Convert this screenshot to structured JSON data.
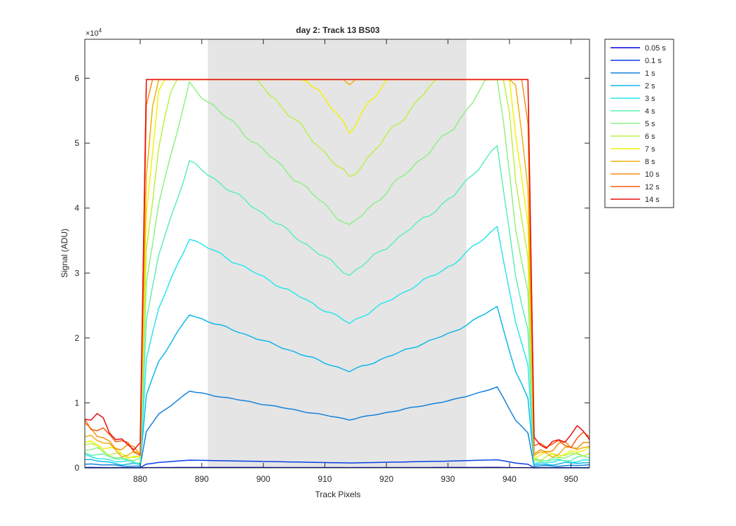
{
  "chart_data": {
    "type": "line",
    "title": "day 2: Track 13  BS03",
    "xlabel": "Track Pixels",
    "ylabel": "Signal (ADU)",
    "y_exponent_label": "×10",
    "y_exponent_power": "4",
    "xlim": [
      871,
      953
    ],
    "ylim": [
      0,
      66000
    ],
    "xticks": [
      880,
      890,
      900,
      910,
      920,
      930,
      940,
      950
    ],
    "yticks": [
      0,
      10000,
      20000,
      30000,
      40000,
      50000,
      60000
    ],
    "ytick_labels": [
      "0",
      "1",
      "2",
      "3",
      "4",
      "5",
      "6"
    ],
    "shaded_region": {
      "x_start": 891,
      "x_end": 933,
      "color": "#e5e5e5"
    },
    "grid": false,
    "legend_position": "outside-right",
    "saturation_level": 59800,
    "series": [
      {
        "name": "0.05 s",
        "exposure": 0.05,
        "color": "#0000e0",
        "levels": [
          35,
          41,
          49,
          59,
          74
        ]
      },
      {
        "name": "0.1 s",
        "exposure": 0.1,
        "color": "#0a3ee8",
        "levels": [
          700,
          820,
          980,
          1180,
          1480
        ]
      },
      {
        "name": "1 s",
        "exposure": 1,
        "color": "#1582dc",
        "levels": [
          7000,
          8200,
          9800,
          11800,
          14800
        ]
      },
      {
        "name": "2 s",
        "exposure": 2,
        "color": "#0fb8e8",
        "levels": [
          14000,
          16400,
          19600,
          23600,
          29600
        ]
      },
      {
        "name": "3 s",
        "exposure": 3,
        "color": "#2ae6ea",
        "levels": [
          21000,
          24600,
          29400,
          35400,
          44400
        ]
      },
      {
        "name": "4 s",
        "exposure": 4,
        "color": "#5cf0b4",
        "levels": [
          28000,
          32800,
          39200,
          47200,
          59200
        ]
      },
      {
        "name": "5 s",
        "exposure": 5,
        "color": "#8ef085",
        "levels": [
          35000,
          41000,
          49000,
          59000,
          74000
        ]
      },
      {
        "name": "6 s",
        "exposure": 6,
        "color": "#bdf048",
        "levels": [
          42000,
          49200,
          58800,
          70800,
          88800
        ]
      },
      {
        "name": "7 s",
        "exposure": 7,
        "color": "#f2f20a",
        "levels": [
          49000,
          57400,
          68600,
          82600,
          103600
        ]
      },
      {
        "name": "8 s",
        "exposure": 8,
        "color": "#f0b010",
        "levels": [
          56000,
          65600,
          78400,
          94400,
          118400
        ]
      },
      {
        "name": "10 s",
        "exposure": 10,
        "color": "#f58f10",
        "levels": [
          70000,
          82000,
          98000,
          118000,
          148000
        ]
      },
      {
        "name": "12 s",
        "exposure": 12,
        "color": "#f55a10",
        "levels": [
          84000,
          98400,
          117600,
          141600,
          177600
        ]
      },
      {
        "name": "14 s",
        "exposure": 14,
        "color": "#e80f0f",
        "levels": [
          98000,
          114800,
          137200,
          165200,
          207200
        ]
      }
    ]
  }
}
